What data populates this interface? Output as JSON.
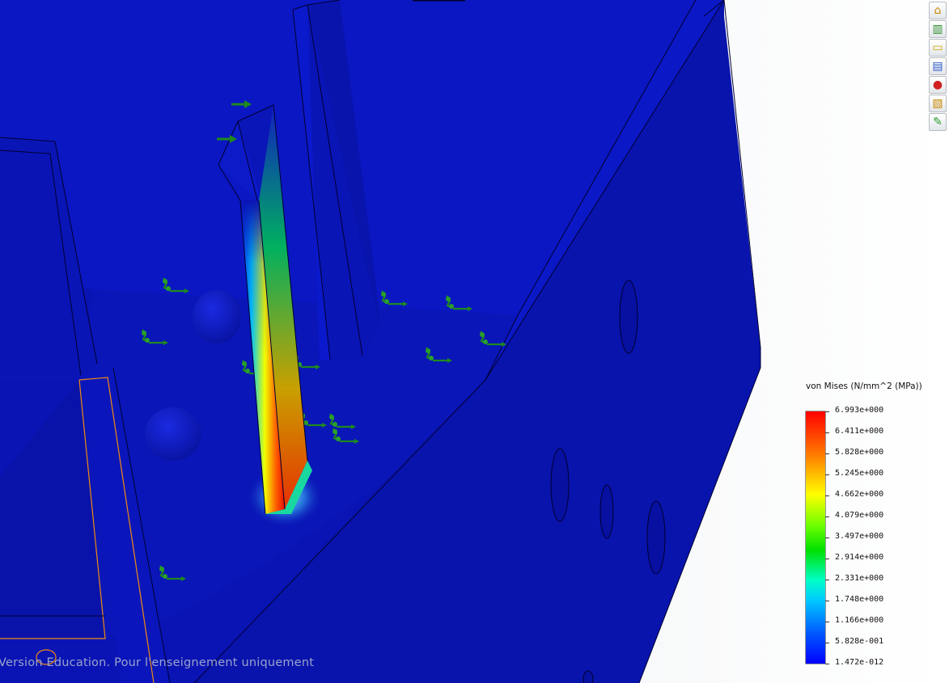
{
  "window": {
    "background_colors": [
      "#e9ecef",
      "#ffffff"
    ],
    "model_color": "#0a14b4"
  },
  "taskpane": {
    "icons": [
      {
        "name": "home-icon",
        "glyph": "⌂",
        "color": "#c88a00"
      },
      {
        "name": "resources-icon",
        "glyph": "▥",
        "color": "#2a8c2a"
      },
      {
        "name": "design-library-icon",
        "glyph": "▭",
        "color": "#d8a800"
      },
      {
        "name": "file-explorer-icon",
        "glyph": "▤",
        "color": "#2b58c8"
      },
      {
        "name": "view-palette-icon",
        "glyph": "●",
        "color": "#d02020"
      },
      {
        "name": "appearances-icon",
        "glyph": "▧",
        "color": "#c88a00"
      },
      {
        "name": "custom-properties-icon",
        "glyph": "✎",
        "color": "#2a9c2a"
      }
    ]
  },
  "legend": {
    "title": "von Mises (N/mm^2 (MPa))",
    "values": [
      "6.993e+000",
      "6.411e+000",
      "5.828e+000",
      "5.245e+000",
      "4.662e+000",
      "4.079e+000",
      "3.497e+000",
      "2.914e+000",
      "2.331e+000",
      "1.748e+000",
      "1.166e+000",
      "5.828e-001",
      "1.472e-012"
    ],
    "max": 6.993,
    "min": 1.472e-12,
    "colormap": [
      "#ff0000",
      "#ff7a00",
      "#ffff00",
      "#00e000",
      "#00ffc8",
      "#00c8ff",
      "#0000ff"
    ]
  },
  "watermark": {
    "text": "Version Education. Pour l'enseignement uniquement"
  }
}
